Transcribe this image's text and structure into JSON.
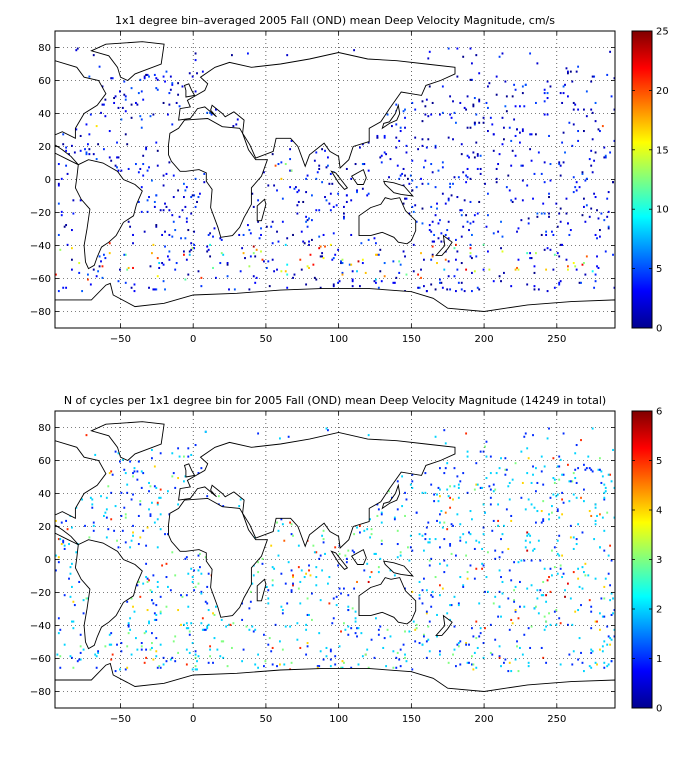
{
  "chart_data": [
    {
      "type": "heatmap",
      "title": "1x1 degree bin–averaged 2005 Fall (OND) mean Deep Velocity Magnitude, cm/s",
      "xlabel": "",
      "ylabel": "",
      "xlim": [
        -95,
        290
      ],
      "ylim": [
        -90,
        90
      ],
      "xticks": [
        -50,
        0,
        50,
        100,
        150,
        200,
        250
      ],
      "yticks": [
        -80,
        -60,
        -40,
        -20,
        0,
        20,
        40,
        60,
        80
      ],
      "grid": true,
      "colorbar": {
        "min": 0,
        "max": 25,
        "ticks": [
          0,
          5,
          10,
          15,
          20,
          25
        ],
        "colormap": "jet"
      },
      "value_range": [
        0,
        25
      ],
      "lows": [
        {
          "x": -60,
          "y": -45
        },
        {
          "x": -30,
          "y": -20
        },
        {
          "x": -40,
          "y": 10
        },
        {
          "x": -20,
          "y": 30
        },
        {
          "x": -70,
          "y": 35
        },
        {
          "x": -80,
          "y": 20
        },
        {
          "x": 10,
          "y": -20
        },
        {
          "x": 60,
          "y": -20
        },
        {
          "x": 80,
          "y": 5
        },
        {
          "x": 90,
          "y": -10
        },
        {
          "x": 120,
          "y": -30
        },
        {
          "x": 170,
          "y": 10
        },
        {
          "x": 200,
          "y": -20
        },
        {
          "x": 230,
          "y": 0
        },
        {
          "x": 250,
          "y": -30
        },
        {
          "x": 180,
          "y": 30
        },
        {
          "x": 150,
          "y": 40
        },
        {
          "x": 200,
          "y": 40
        },
        {
          "x": 270,
          "y": -40
        },
        {
          "x": 140,
          "y": -20
        },
        {
          "x": 240,
          "y": 20
        },
        {
          "x": 260,
          "y": 10
        },
        {
          "x": 210,
          "y": -45
        },
        {
          "x": 160,
          "y": -45
        }
      ],
      "highs": [
        {
          "x": -40,
          "y": -50
        },
        {
          "x": 20,
          "y": -45
        },
        {
          "x": 40,
          "y": -40
        },
        {
          "x": 80,
          "y": -50
        },
        {
          "x": 120,
          "y": -50
        },
        {
          "x": 170,
          "y": -55
        },
        {
          "x": 220,
          "y": -55
        },
        {
          "x": 260,
          "y": -55
        },
        {
          "x": 285,
          "y": 35
        },
        {
          "x": -60,
          "y": 35
        },
        {
          "x": 60,
          "y": 5
        },
        {
          "x": 145,
          "y": 10
        }
      ]
    },
    {
      "type": "heatmap",
      "title": "N of cycles per 1x1 degree bin for 2005 Fall (OND) mean Deep Velocity Magnitude (14249 in total)",
      "xlabel": "",
      "ylabel": "",
      "xlim": [
        -95,
        290
      ],
      "ylim": [
        -90,
        90
      ],
      "xticks": [
        -50,
        0,
        50,
        100,
        150,
        200,
        250
      ],
      "yticks": [
        -80,
        -60,
        -40,
        -20,
        0,
        20,
        40,
        60,
        80
      ],
      "grid": true,
      "colorbar": {
        "min": 0,
        "max": 6,
        "ticks": [
          0,
          1,
          2,
          3,
          4,
          5,
          6
        ],
        "colormap": "jet"
      },
      "value_range": [
        0,
        6
      ],
      "total_cycles": 14249,
      "highs": [
        {
          "x": 200,
          "y": 0
        },
        {
          "x": 230,
          "y": 10
        },
        {
          "x": 180,
          "y": 30
        },
        {
          "x": 250,
          "y": -20
        },
        {
          "x": 160,
          "y": -30
        },
        {
          "x": 30,
          "y": 20
        },
        {
          "x": 70,
          "y": 5
        },
        {
          "x": 210,
          "y": -40
        },
        {
          "x": 270,
          "y": 30
        },
        {
          "x": 120,
          "y": -10
        }
      ]
    }
  ]
}
